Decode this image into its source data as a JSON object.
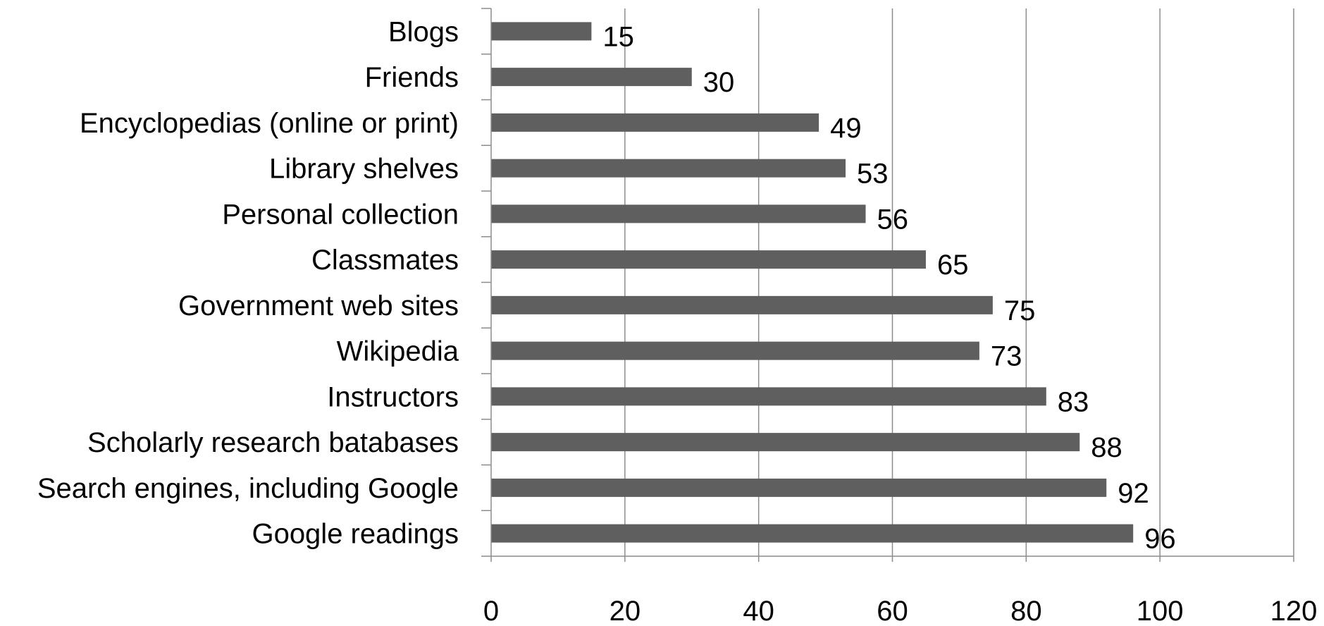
{
  "chart_data": {
    "type": "bar",
    "orientation": "horizontal",
    "title": "",
    "xlabel": "",
    "ylabel": "",
    "categories": [
      "Blogs",
      "Friends",
      "Encyclopedias (online or print)",
      "Library shelves",
      "Personal collection",
      "Classmates",
      "Government web sites",
      "Wikipedia",
      "Instructors",
      "Scholarly research batabases",
      "Search engines, including Google",
      "Google readings"
    ],
    "values": [
      15,
      30,
      49,
      53,
      56,
      65,
      75,
      73,
      83,
      88,
      92,
      96
    ],
    "xlim": [
      0,
      120
    ],
    "x_ticks": [
      0,
      20,
      40,
      60,
      80,
      100,
      120
    ],
    "x_tick_labels": [
      "0",
      "20",
      "40",
      "60",
      "80",
      "100",
      "120"
    ],
    "data_labels": [
      "15",
      "30",
      "49",
      "53",
      "56",
      "65",
      "75",
      "73",
      "83",
      "88",
      "92",
      "96"
    ],
    "grid": "vertical major gridlines",
    "legend": "none",
    "bar_color": "#5f5f5f",
    "grid_color": "#8c8c8c"
  }
}
